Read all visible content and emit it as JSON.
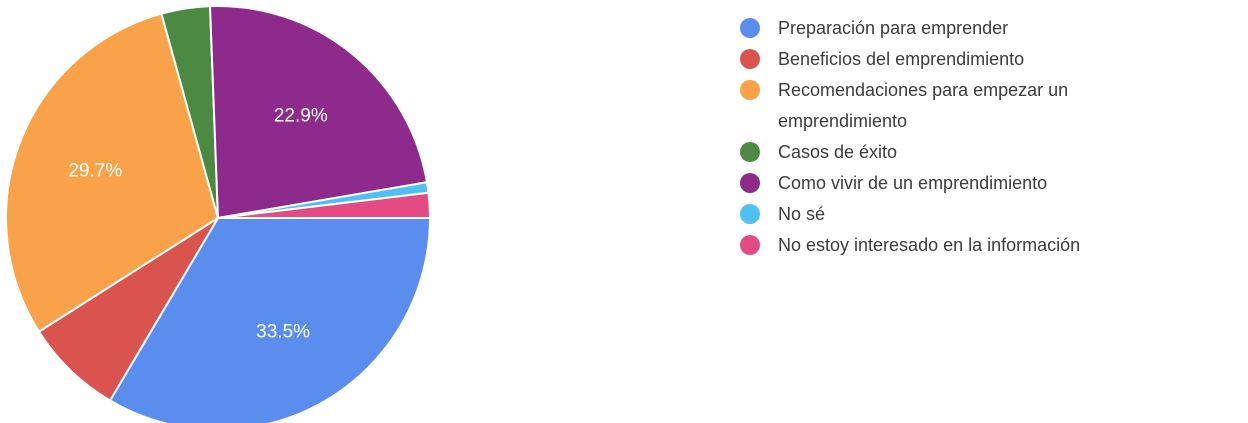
{
  "chart_data": {
    "type": "pie",
    "title": "",
    "slices": [
      {
        "label": "Preparación para emprender",
        "value": 33.5,
        "display": "33.5%",
        "color": "#5b8def"
      },
      {
        "label": "Beneficios del emprendimiento",
        "value": 7.5,
        "display": "",
        "color": "#d9534f"
      },
      {
        "label": "Recomendaciones para empezar un emprendimiento",
        "value": 29.7,
        "display": "29.7%",
        "color": "#f9a24a"
      },
      {
        "label": "Casos de éxito",
        "value": 3.7,
        "display": "",
        "color": "#4c8a44"
      },
      {
        "label": "Como vivir de un emprendimiento",
        "value": 22.9,
        "display": "22.9%",
        "color": "#8e2a8b"
      },
      {
        "label": "No sé",
        "value": 0.8,
        "display": "",
        "color": "#4fc0f2"
      },
      {
        "label": "No estoy interesado en la información",
        "value": 1.9,
        "display": "",
        "color": "#e34b82"
      }
    ],
    "legend": {
      "position": "right",
      "items": [
        {
          "lines": [
            "Preparación para emprender"
          ]
        },
        {
          "lines": [
            "Beneficios del emprendimiento"
          ]
        },
        {
          "lines": [
            "Recomendaciones para empezar un",
            "emprendimiento"
          ]
        },
        {
          "lines": [
            "Casos de éxito"
          ]
        },
        {
          "lines": [
            "Como vivir de un emprendimiento"
          ]
        },
        {
          "lines": [
            "No sé"
          ]
        },
        {
          "lines": [
            "No estoy interesado en la información"
          ]
        }
      ]
    }
  }
}
